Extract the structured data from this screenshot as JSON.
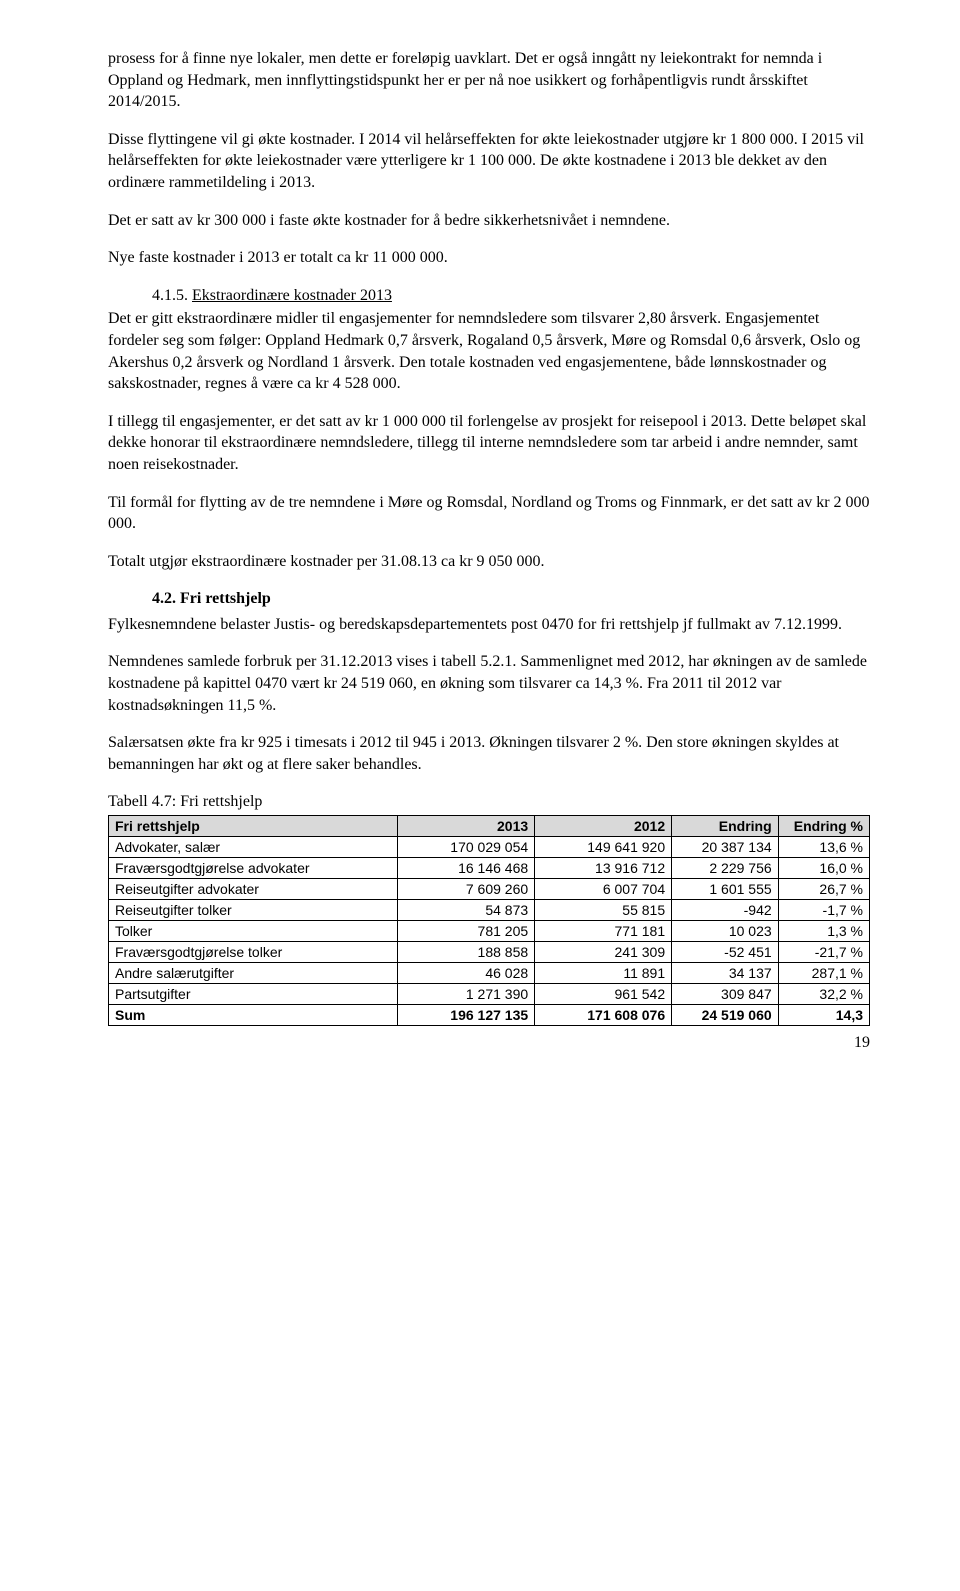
{
  "para1": "prosess for å finne nye lokaler, men dette er foreløpig uavklart. Det er også inngått ny leiekontrakt for nemnda i Oppland og Hedmark, men innflyttingstidspunkt her er per nå noe usikkert og forhåpentligvis rundt årsskiftet 2014/2015.",
  "para2": "Disse flyttingene vil gi økte kostnader. I 2014 vil helårseffekten for økte leiekostnader utgjøre kr 1 800 000. I 2015 vil helårseffekten for økte leiekostnader være ytterligere kr 1 100 000. De økte kostnadene i 2013 ble dekket av den ordinære rammetildeling i 2013.",
  "para3": "Det er satt av kr 300 000 i faste økte kostnader for å bedre sikkerhetsnivået i nemndene.",
  "para4": "Nye faste kostnader i 2013 er totalt ca kr 11 000 000.",
  "sub415_num": "4.1.5.",
  "sub415_title": "Ekstraordinære kostnader 2013",
  "para5": "Det er gitt ekstraordinære midler til engasjementer for nemndsledere som tilsvarer 2,80 årsverk. Engasjementet fordeler seg som følger: Oppland Hedmark 0,7 årsverk, Rogaland 0,5 årsverk, Møre og Romsdal 0,6 årsverk, Oslo og Akershus 0,2 årsverk og Nordland 1 årsverk. Den totale kostnaden ved engasjementene, både lønnskostnader og sakskostnader, regnes å være ca kr 4 528 000.",
  "para6": "I tillegg til engasjementer, er det satt av kr 1 000 000 til forlengelse av prosjekt for reisepool i 2013. Dette beløpet skal dekke honorar til ekstraordinære nemndsledere, tillegg til interne nemndsledere som tar arbeid i andre nemnder, samt noen reisekostnader.",
  "para7": "Til formål for flytting av de tre nemndene i Møre og Romsdal, Nordland og Troms og Finnmark, er det satt av kr 2 000 000.",
  "para8": "Totalt utgjør ekstraordinære kostnader per 31.08.13 ca kr 9 050 000.",
  "sec42_num": "4.2.",
  "sec42_title": "Fri rettshjelp",
  "para9": "Fylkesnemndene belaster Justis- og beredskapsdepartementets post 0470 for fri rettshjelp jf fullmakt av 7.12.1999.",
  "para10": "Nemndenes samlede forbruk per 31.12.2013 vises i tabell 5.2.1. Sammenlignet med 2012, har økningen av de samlede kostnadene på kapittel 0470 vært kr 24 519 060, en økning som tilsvarer ca 14,3 %. Fra 2011 til 2012 var kostnadsøkningen 11,5 %.",
  "para11": "Salærsatsen økte fra kr 925 i timesats i 2012 til 945 i 2013. Økningen tilsvarer 2 %. Den store økningen skyldes at bemanningen har økt og at flere saker behandles.",
  "table_caption": "Tabell 4.7: Fri rettshjelp",
  "table": {
    "headers": [
      "Fri rettshjelp",
      "2013",
      "2012",
      "Endring",
      "Endring %"
    ],
    "rows": [
      [
        "Advokater, salær",
        "170 029 054",
        "149 641 920",
        "20 387 134",
        "13,6 %"
      ],
      [
        "Fraværsgodtgjørelse advokater",
        "16 146 468",
        "13 916 712",
        "2 229 756",
        "16,0 %"
      ],
      [
        "Reiseutgifter advokater",
        "7 609 260",
        "6 007 704",
        "1 601 555",
        "26,7 %"
      ],
      [
        "Reiseutgifter tolker",
        "54 873",
        "55 815",
        "-942",
        "-1,7 %"
      ],
      [
        "Tolker",
        "781 205",
        "771 181",
        "10 023",
        "1,3 %"
      ],
      [
        "Fraværsgodtgjørelse tolker",
        "188 858",
        "241 309",
        "-52 451",
        "-21,7 %"
      ],
      [
        "Andre salærutgifter",
        "46 028",
        "11 891",
        "34 137",
        "287,1 %"
      ],
      [
        "Partsutgifter",
        "1 271 390",
        "961 542",
        "309 847",
        "32,2 %"
      ],
      [
        "Sum",
        "196 127 135",
        "171 608 076",
        "24 519 060",
        "14,3"
      ]
    ],
    "header_bg": "#d9d9d9",
    "border_color": "#000000"
  },
  "page_number": "19"
}
